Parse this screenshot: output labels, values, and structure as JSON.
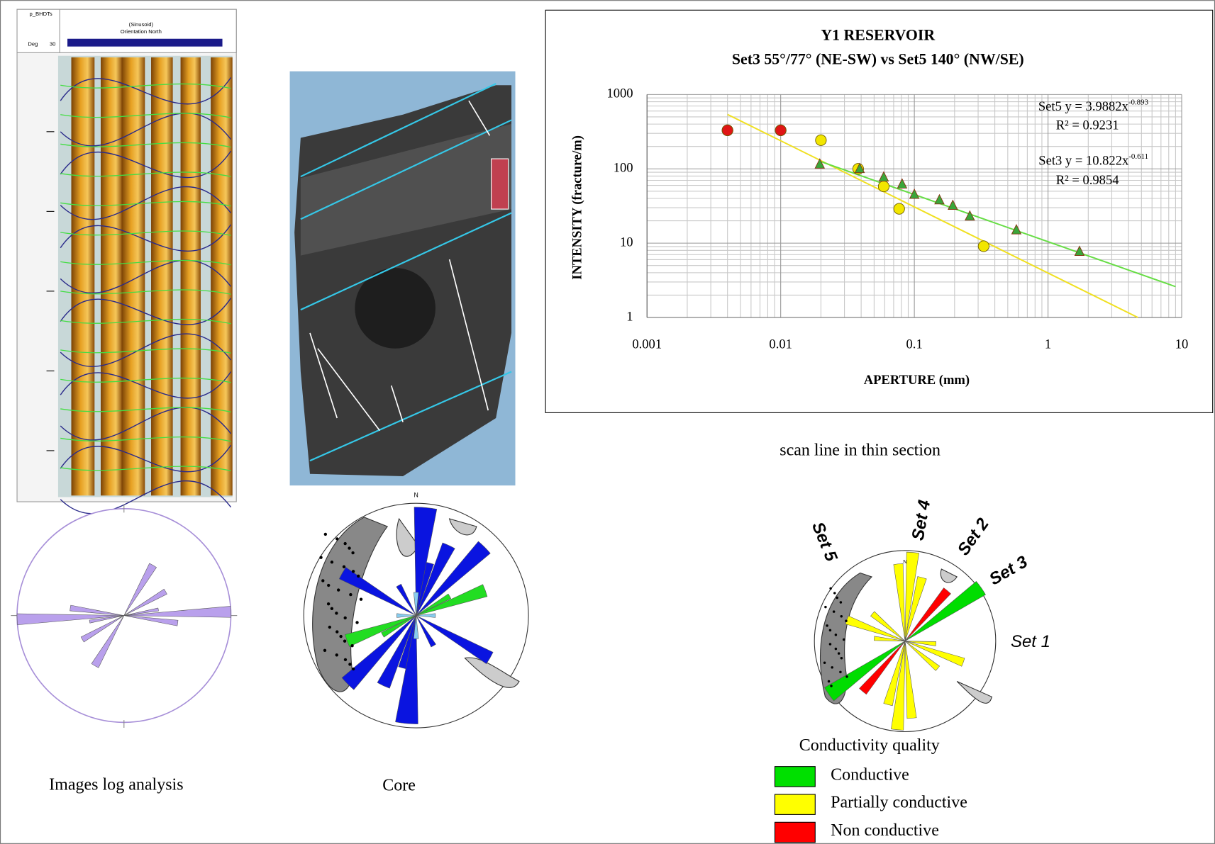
{
  "chart_data": {
    "type": "scatter",
    "title": "Y1 RESERVOIR",
    "subtitle": "Set3 55°/77° (NE-SW) vs Set5 140° (NW/SE)",
    "x_label": "APERTURE (mm)",
    "y_label": "INTENSITY (fracture/m)",
    "log_x": true,
    "log_y": true,
    "grid": true,
    "xlim": [
      0.001,
      10
    ],
    "ylim": [
      1,
      1000
    ],
    "xticks": [
      0.001,
      0.01,
      0.1,
      1,
      10
    ],
    "yticks": [
      1,
      10,
      100,
      1000
    ],
    "series": [
      {
        "color": "#f2e600",
        "marker": "circle",
        "x": [
          0.004,
          0.01,
          0.02,
          0.038,
          0.059,
          0.077,
          0.33
        ],
        "values": [
          330,
          330,
          243,
          100,
          58,
          29,
          9.1
        ]
      },
      {
        "color": "#3aa63a",
        "marker": "triangle",
        "x": [
          0.0196,
          0.039,
          0.059,
          0.081,
          0.1,
          0.154,
          0.194,
          0.26,
          0.58,
          1.72
        ],
        "values": [
          115,
          100,
          77,
          62,
          45,
          38,
          32,
          23,
          15,
          7.7
        ]
      },
      {
        "color": "#e01515",
        "marker": "circle",
        "x": [
          0.004,
          0.01
        ],
        "values": [
          330,
          330
        ]
      }
    ],
    "trendlines": [
      {
        "color": "#f0e020",
        "x": [
          0.004,
          4.7
        ],
        "values": [
          540,
          1
        ]
      },
      {
        "color": "#66dd44",
        "x": [
          0.02,
          9
        ],
        "values": [
          125,
          2.6
        ]
      }
    ],
    "annotations": [
      {
        "label": "Set5 y = 3.9882x",
        "exponent": "-0.893"
      },
      {
        "label": "R² = 0.9231"
      },
      {
        "label": "Set3 y = 10.822x",
        "exponent": "-0.611"
      },
      {
        "label": "R² = 0.9854"
      }
    ]
  },
  "panels": {
    "log_header": [
      "p_BHDTs",
      "Deg",
      "30",
      "(Sinusoid)",
      "Orientation North"
    ],
    "captions": [
      "Images log analysis",
      "Core",
      "scan line in thin section"
    ],
    "north": "N",
    "set_labels": [
      "Set 5",
      "Set 4",
      "Set 2",
      "Set 3",
      "Set 1"
    ],
    "legend": {
      "title": "Conductivity quality",
      "items": [
        {
          "label": "Conductive",
          "color": "#00e000"
        },
        {
          "label": "Partially conductive",
          "color": "#ffff00"
        },
        {
          "label": "Non conductive",
          "color": "#ff0000"
        }
      ]
    }
  }
}
